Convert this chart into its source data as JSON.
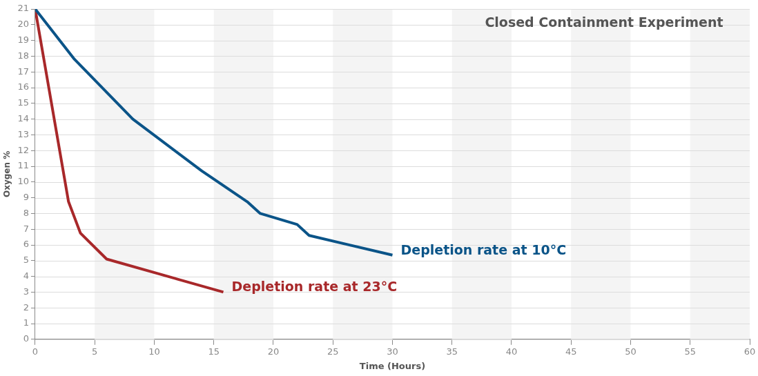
{
  "chart_data": {
    "type": "line",
    "title": "Closed Containment Experiment",
    "xlabel": "Time (Hours)",
    "ylabel": "Oxygen %",
    "xlim": [
      0,
      60
    ],
    "xticks": [
      0,
      5,
      10,
      15,
      20,
      25,
      30,
      35,
      40,
      45,
      50,
      55,
      60
    ],
    "ylim": [
      0,
      21
    ],
    "yticks": [
      0,
      1,
      2,
      3,
      4,
      5,
      6,
      7,
      8,
      9,
      10,
      11,
      12,
      13,
      14,
      15,
      16,
      17,
      18,
      19,
      20,
      21
    ],
    "grid": "y",
    "legend": false,
    "marker": "none",
    "line_style": "solid",
    "bands": [
      {
        "axis": "x",
        "from": 5,
        "to": 10,
        "color": "#f4f4f4"
      },
      {
        "axis": "x",
        "from": 15,
        "to": 20,
        "color": "#f4f4f4"
      },
      {
        "axis": "x",
        "from": 25,
        "to": 30,
        "color": "#f4f4f4"
      },
      {
        "axis": "x",
        "from": 35,
        "to": 40,
        "color": "#f4f4f4"
      },
      {
        "axis": "x",
        "from": 45,
        "to": 50,
        "color": "#f4f4f4"
      },
      {
        "axis": "x",
        "from": 55,
        "to": 60,
        "color": "#f4f4f4"
      }
    ],
    "series": [
      {
        "name": "Depletion rate at 10°C",
        "color": "#0b5488",
        "x": [
          0,
          3.3,
          8.2,
          14,
          17.8,
          18.9,
          22,
          23,
          30
        ],
        "values": [
          21,
          17.8,
          14,
          10.7,
          8.75,
          8,
          7.3,
          6.6,
          5.35
        ]
      },
      {
        "name": "Depletion rate at 23°C",
        "color": "#a8282a",
        "x": [
          0,
          2.8,
          3.8,
          6,
          15.8
        ],
        "values": [
          21,
          8.75,
          6.75,
          5.1,
          3
        ]
      }
    ]
  }
}
